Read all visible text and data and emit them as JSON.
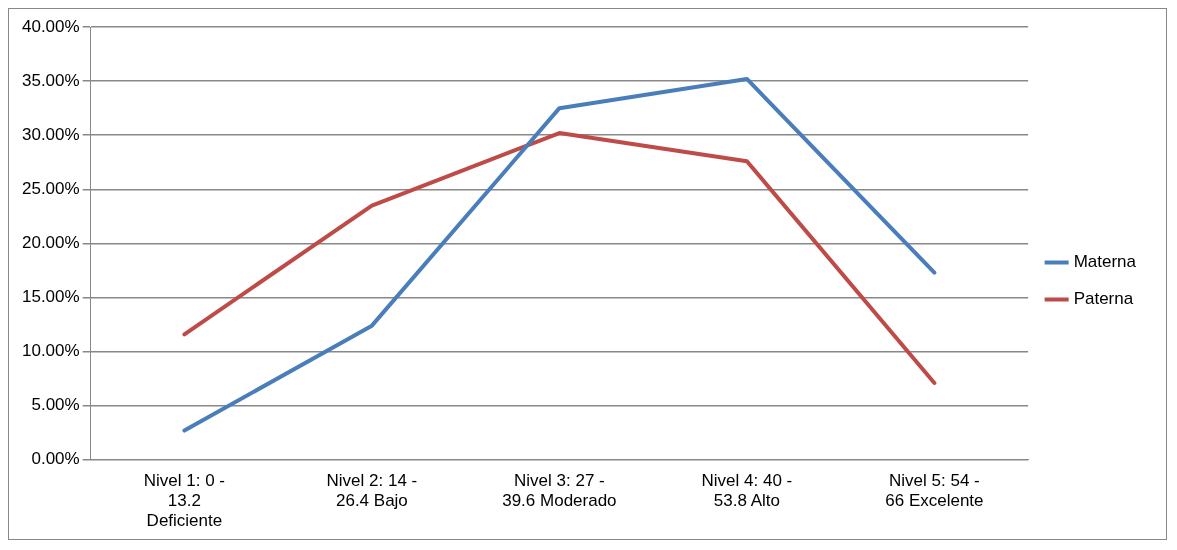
{
  "chart_data": {
    "type": "line",
    "categories": [
      "Nivel 1: 0 - 13.2 Deficiente",
      "Nivel 2: 14 - 26.4 Bajo",
      "Nivel 3: 27 - 39.6 Moderado",
      "Nivel 4: 40 - 53.8 Alto",
      "Nivel 5: 54 - 66 Excelente"
    ],
    "series": [
      {
        "name": "Materna",
        "color": "#4a7ebb",
        "values": [
          2.7,
          12.4,
          32.5,
          35.2,
          17.3
        ]
      },
      {
        "name": "Paterna",
        "color": "#be4b48",
        "values": [
          11.6,
          23.5,
          30.2,
          27.6,
          7.1
        ]
      }
    ],
    "ylim": [
      0,
      40
    ],
    "yticks": [
      {
        "value": 0,
        "label": "0.00%"
      },
      {
        "value": 5,
        "label": "5.00%"
      },
      {
        "value": 10,
        "label": "10.00%"
      },
      {
        "value": 15,
        "label": "15.00%"
      },
      {
        "value": 20,
        "label": "20.00%"
      },
      {
        "value": 25,
        "label": "25.00%"
      },
      {
        "value": 30,
        "label": "30.00%"
      },
      {
        "value": 35,
        "label": "35.00%"
      },
      {
        "value": 40,
        "label": "40.00%"
      }
    ],
    "grid": "y",
    "legend": "right",
    "marker": "none",
    "line_style": "solid"
  }
}
